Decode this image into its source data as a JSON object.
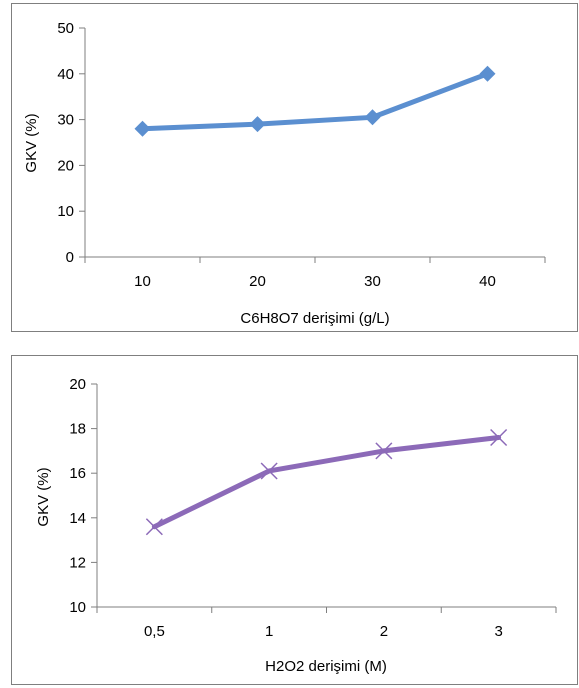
{
  "chart_data": [
    {
      "type": "line",
      "categories": [
        "10",
        "20",
        "30",
        "40"
      ],
      "series": [
        {
          "values": [
            28,
            29,
            30.5,
            40
          ]
        }
      ],
      "xlabel": "C6H8O7 derişimi (g/L)",
      "ylabel": "GKV (%)",
      "ylim": [
        0,
        50
      ],
      "yticks": [
        "0",
        "10",
        "20",
        "30",
        "40",
        "50"
      ],
      "marker": "diamond",
      "color": "#5b8fd0",
      "grid": false,
      "legend": "none"
    },
    {
      "type": "line",
      "categories": [
        "0,5",
        "1",
        "2",
        "3"
      ],
      "series": [
        {
          "values": [
            13.6,
            16.1,
            17,
            17.6
          ]
        }
      ],
      "xlabel": "H2O2 derişimi (M)",
      "ylabel": "GKV (%)",
      "ylim": [
        10,
        20
      ],
      "yticks": [
        "10",
        "12",
        "14",
        "16",
        "18",
        "20"
      ],
      "marker": "x",
      "color": "#8c6ab8",
      "grid": false,
      "legend": "none"
    }
  ]
}
